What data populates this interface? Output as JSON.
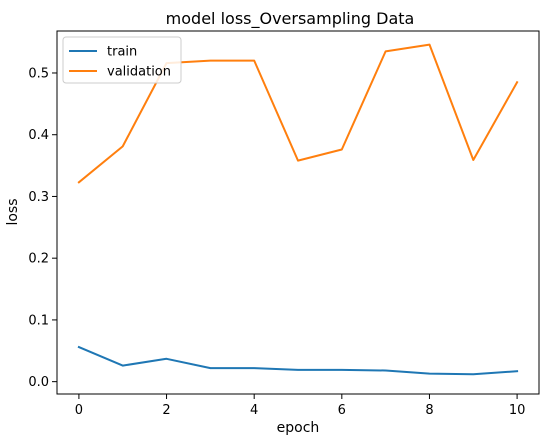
{
  "chart_data": {
    "type": "line",
    "title": "model loss_Oversampling Data",
    "xlabel": "epoch",
    "ylabel": "loss",
    "x": [
      0,
      1,
      2,
      3,
      4,
      5,
      6,
      7,
      8,
      9,
      10
    ],
    "xlim": [
      -0.5,
      10.5
    ],
    "ylim": [
      -0.02,
      0.568
    ],
    "xticks": [
      0,
      2,
      4,
      6,
      8,
      10
    ],
    "yticks": [
      0.0,
      0.1,
      0.2,
      0.3,
      0.4,
      0.5
    ],
    "ytick_labels": [
      "0.0",
      "0.1",
      "0.2",
      "0.3",
      "0.4",
      "0.5"
    ],
    "grid": false,
    "legend_position": "top-left",
    "series": [
      {
        "name": "train",
        "color": "#1f77b4",
        "values": [
          0.056,
          0.026,
          0.037,
          0.022,
          0.022,
          0.019,
          0.019,
          0.018,
          0.013,
          0.012,
          0.017
        ]
      },
      {
        "name": "validation",
        "color": "#ff7f0e",
        "values": [
          0.323,
          0.381,
          0.516,
          0.52,
          0.52,
          0.358,
          0.376,
          0.535,
          0.546,
          0.359,
          0.485
        ]
      }
    ]
  }
}
